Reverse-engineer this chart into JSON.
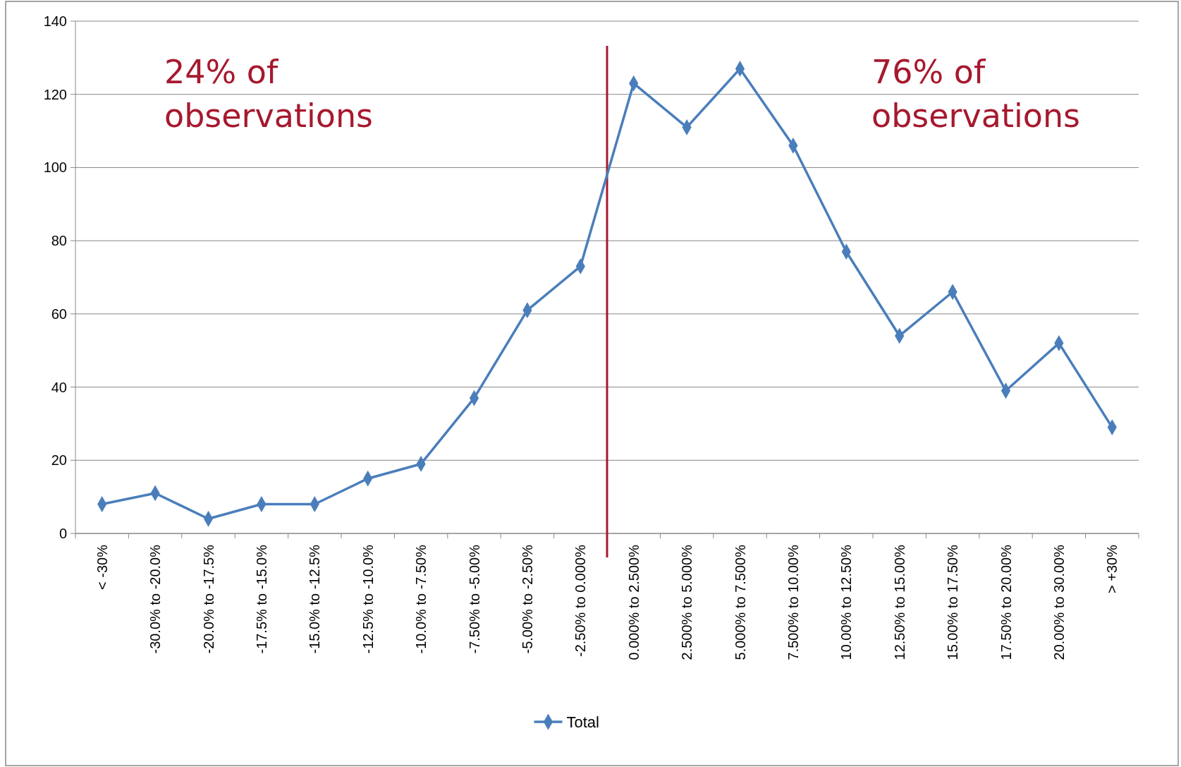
{
  "chart_data": {
    "type": "line",
    "categories": [
      "< -30%",
      "-30.0% to -20.0%",
      "-20.0% to -17.5%",
      "-17.5% to -15.0%",
      "-15.0% to -12.5%",
      "-12.5% to -10.0%",
      "-10.0% to -7.50%",
      "-7.50% to -5.00%",
      "-5.00% to -2.50%",
      "-2.50% to 0.000%",
      "0.000% to 2.500%",
      "2.500% to 5.000%",
      "5.000% to 7.500%",
      "7.500% to 10.00%",
      "10.00% to 12.50%",
      "12.50% to 15.00%",
      "15.00% to 17.50%",
      "17.50% to 20.00%",
      "20.00% to 30.00%",
      "> +30%"
    ],
    "series": [
      {
        "name": "Total",
        "color": "#4a7ebb",
        "values": [
          8,
          11,
          4,
          8,
          8,
          15,
          19,
          37,
          61,
          73,
          123,
          111,
          127,
          106,
          77,
          54,
          66,
          39,
          52,
          29
        ]
      }
    ],
    "ylim": [
      0,
      140
    ],
    "yticks": [
      0,
      20,
      40,
      60,
      80,
      100,
      120,
      140
    ],
    "grid": "y",
    "legend": "bottom",
    "marker": "diamond",
    "line_style": "solid",
    "ref_lines": [
      {
        "axis": "x",
        "value": "0.000% to 2.500%",
        "color": "#a6192e"
      }
    ],
    "annotations": [
      "24% of observations",
      "76% of observations"
    ]
  }
}
